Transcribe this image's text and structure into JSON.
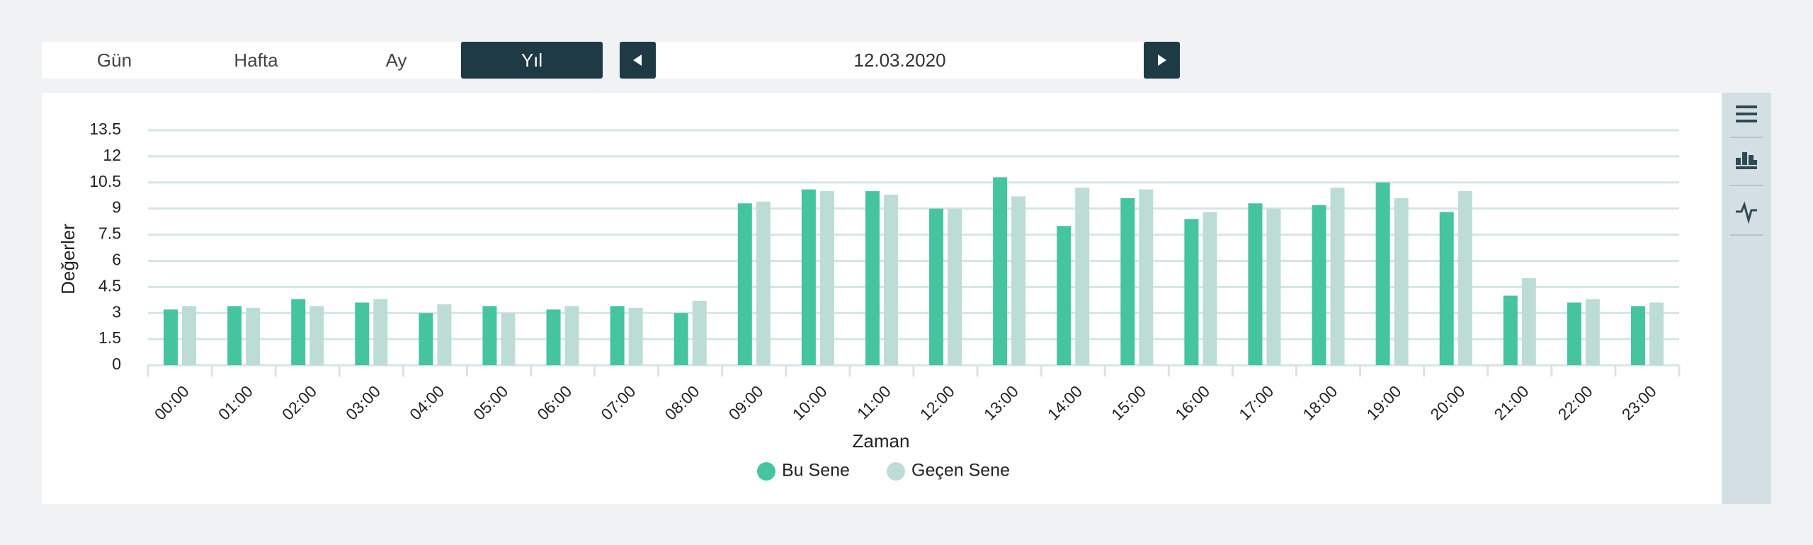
{
  "ui": {
    "tabs": [
      "Gün",
      "Hafta",
      "Ay",
      "Yıl"
    ],
    "date": "12.03.2020"
  },
  "chart_data": {
    "type": "bar",
    "x_label": "Zaman",
    "y_label": "Değerler",
    "categories": [
      "00:00",
      "01:00",
      "02:00",
      "03:00",
      "04:00",
      "05:00",
      "06:00",
      "07:00",
      "08:00",
      "09:00",
      "10:00",
      "11:00",
      "12:00",
      "13:00",
      "14:00",
      "15:00",
      "16:00",
      "17:00",
      "18:00",
      "19:00",
      "20:00",
      "21:00",
      "22:00",
      "23:00"
    ],
    "series": [
      {
        "name": "Bu Sene",
        "color": "#45c4a0",
        "values": [
          3.2,
          3.4,
          3.8,
          3.6,
          3.0,
          3.4,
          3.2,
          3.4,
          3.0,
          9.3,
          10.1,
          10.0,
          9.0,
          10.8,
          8.0,
          9.6,
          8.4,
          9.3,
          9.2,
          10.5,
          8.8,
          4.0,
          3.6,
          3.4
        ]
      },
      {
        "name": "Geçen Sene",
        "color": "#bcddd5",
        "values": [
          3.4,
          3.3,
          3.4,
          3.8,
          3.5,
          3.0,
          3.4,
          3.3,
          3.7,
          9.4,
          10.0,
          9.8,
          9.0,
          9.7,
          10.2,
          10.1,
          8.8,
          9.0,
          10.2,
          9.6,
          10.0,
          5.0,
          3.8,
          3.6
        ]
      }
    ],
    "ylim": [
      0,
      13.5
    ],
    "yticks": [
      0,
      1.5,
      3,
      4.5,
      6,
      7.5,
      9,
      10.5,
      12,
      13.5
    ],
    "grid": true
  }
}
